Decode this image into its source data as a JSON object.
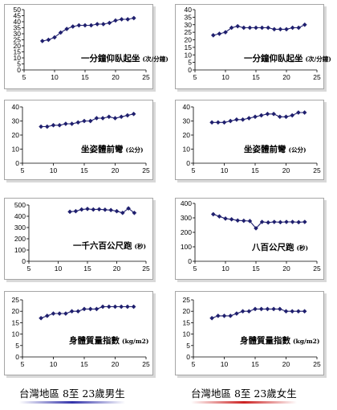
{
  "captions": {
    "left": "台灣地區 8至 23歲男生",
    "right": "台灣地區 8至 23歲女生",
    "left_color": "#3333aa",
    "right_color": "#cc2222"
  },
  "colors": {
    "series": "#1f1f6e",
    "frame": "#a6a6a6"
  },
  "chart_data": [
    {
      "type": "line",
      "title": "一分鐘仰臥起坐",
      "unit": "(次/分鐘)",
      "xlim": [
        5,
        25
      ],
      "xticks": [
        5,
        10,
        15,
        20,
        25
      ],
      "ylim": [
        0,
        50
      ],
      "yticks": [
        0,
        5,
        10,
        15,
        20,
        25,
        30,
        35,
        40,
        45,
        50
      ],
      "x": [
        8,
        9,
        10,
        11,
        12,
        13,
        14,
        15,
        16,
        17,
        18,
        19,
        20,
        21,
        22,
        23
      ],
      "y": [
        24,
        25,
        27,
        31,
        34,
        36,
        37,
        37,
        37,
        38,
        38,
        39,
        41,
        42,
        42,
        43
      ]
    },
    {
      "type": "line",
      "title": "一分鐘仰臥起坐",
      "unit": "(次/分鐘)",
      "xlim": [
        5,
        25
      ],
      "xticks": [
        5,
        10,
        15,
        20,
        25
      ],
      "ylim": [
        0,
        40
      ],
      "yticks": [
        0,
        5,
        10,
        15,
        20,
        25,
        30,
        35,
        40
      ],
      "x": [
        8,
        9,
        10,
        11,
        12,
        13,
        14,
        15,
        16,
        17,
        18,
        19,
        20,
        21,
        22,
        23
      ],
      "y": [
        23,
        24,
        25,
        28,
        29,
        28,
        28,
        28,
        28,
        28,
        27,
        27,
        27,
        28,
        28,
        30
      ]
    },
    {
      "type": "line",
      "title": "坐姿體前彎",
      "unit": "(公分)",
      "xlim": [
        5,
        25
      ],
      "xticks": [
        5,
        10,
        15,
        20,
        25
      ],
      "ylim": [
        0,
        40
      ],
      "yticks": [
        0,
        10,
        20,
        30,
        40
      ],
      "x": [
        8,
        9,
        10,
        11,
        12,
        13,
        14,
        15,
        16,
        17,
        18,
        19,
        20,
        21,
        22,
        23
      ],
      "y": [
        26,
        26,
        27,
        27,
        28,
        28,
        29,
        30,
        30,
        32,
        32,
        33,
        32,
        33,
        34,
        35
      ]
    },
    {
      "type": "line",
      "title": "坐姿體前彎",
      "unit": "(公分)",
      "xlim": [
        5,
        25
      ],
      "xticks": [
        5,
        10,
        15,
        20,
        25
      ],
      "ylim": [
        0,
        40
      ],
      "yticks": [
        0,
        10,
        20,
        30,
        40
      ],
      "x": [
        8,
        9,
        10,
        11,
        12,
        13,
        14,
        15,
        16,
        17,
        18,
        19,
        20,
        21,
        22,
        23
      ],
      "y": [
        29,
        29,
        29,
        30,
        31,
        31,
        32,
        33,
        34,
        35,
        35,
        33,
        33,
        34,
        36,
        36
      ]
    },
    {
      "type": "line",
      "title": "一千六百公尺跑",
      "unit": "(秒)",
      "xlim": [
        5,
        25
      ],
      "xticks": [
        5,
        10,
        15,
        20,
        25
      ],
      "ylim": [
        0,
        500
      ],
      "yticks": [
        0,
        100,
        200,
        300,
        400,
        500
      ],
      "x": [
        12,
        13,
        14,
        15,
        16,
        17,
        18,
        19,
        20,
        21,
        22,
        23
      ],
      "y": [
        440,
        445,
        460,
        465,
        460,
        462,
        458,
        455,
        445,
        430,
        470,
        430
      ]
    },
    {
      "type": "line",
      "title": "八百公尺跑",
      "unit": "(秒)",
      "xlim": [
        5,
        25
      ],
      "xticks": [
        5,
        10,
        15,
        20,
        25
      ],
      "ylim": [
        0,
        400
      ],
      "yticks": [
        0,
        100,
        200,
        300,
        400
      ],
      "x": [
        8,
        9,
        10,
        11,
        12,
        13,
        14,
        15,
        16,
        17,
        18,
        19,
        20,
        21,
        22,
        23
      ],
      "y": [
        325,
        310,
        295,
        290,
        282,
        280,
        278,
        228,
        272,
        268,
        272,
        270,
        272,
        272,
        270,
        272
      ]
    },
    {
      "type": "line",
      "title": "身體質量指數",
      "unit": "(kg/m2)",
      "xlim": [
        5,
        25
      ],
      "xticks": [
        5,
        10,
        15,
        20,
        25
      ],
      "ylim": [
        0,
        25
      ],
      "yticks": [
        0,
        5,
        10,
        15,
        20,
        25
      ],
      "x": [
        8,
        9,
        10,
        11,
        12,
        13,
        14,
        15,
        16,
        17,
        18,
        19,
        20,
        21,
        22,
        23
      ],
      "y": [
        17,
        18,
        19,
        19,
        19,
        20,
        20,
        21,
        21,
        21,
        22,
        22,
        22,
        22,
        22,
        22
      ]
    },
    {
      "type": "line",
      "title": "身體質量指數",
      "unit": "(kg/m2)",
      "xlim": [
        5,
        25
      ],
      "xticks": [
        5,
        10,
        15,
        20,
        25
      ],
      "ylim": [
        0,
        25
      ],
      "yticks": [
        0,
        5,
        10,
        15,
        20,
        25
      ],
      "x": [
        8,
        9,
        10,
        11,
        12,
        13,
        14,
        15,
        16,
        17,
        18,
        19,
        20,
        21,
        22,
        23
      ],
      "y": [
        17,
        18,
        18,
        18,
        19,
        20,
        20,
        21,
        21,
        21,
        21,
        21,
        20,
        20,
        20,
        20
      ]
    }
  ]
}
